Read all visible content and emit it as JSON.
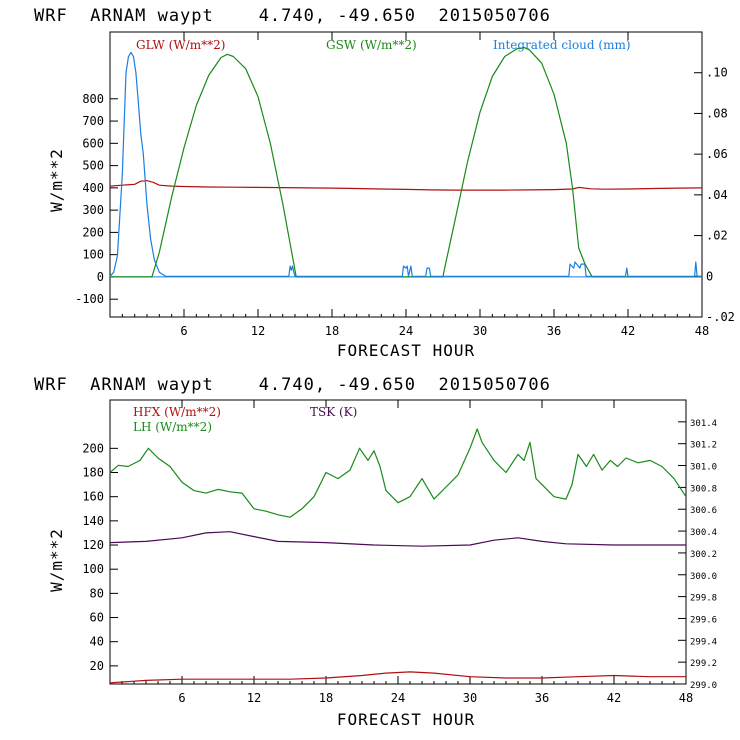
{
  "colors": {
    "red": "#b01010",
    "green": "#1a8a1a",
    "blue": "#1a7fe0",
    "purple": "#4a0a55",
    "axis": "#000000"
  },
  "chart_data": [
    {
      "type": "line",
      "title": "WRF  ARNAM waypt    4.740, -49.650  2015050706",
      "xlabel": "FORECAST HOUR",
      "ylabel": "W/m**2",
      "xlim": [
        0,
        48
      ],
      "ylim": [
        -180,
        1100
      ],
      "x_ticks": [
        6,
        12,
        18,
        24,
        30,
        36,
        42,
        48
      ],
      "y_ticks": [
        -100,
        0,
        100,
        200,
        300,
        400,
        500,
        600,
        700,
        800
      ],
      "y2lim": [
        -0.02,
        0.12
      ],
      "y2_ticks": [
        0.1,
        0.08,
        0.06,
        0.04,
        0.02,
        0,
        -0.02
      ],
      "y2_tick_labels": [
        ".10",
        ".08",
        ".06",
        ".04",
        ".02",
        "0",
        "-.02"
      ],
      "zero_line": true,
      "series": [
        {
          "name": "GLW (W/m**2)",
          "color_key": "red",
          "axis": "left",
          "x": [
            0,
            1,
            2,
            2.5,
            3,
            3.5,
            4,
            5,
            6,
            8,
            10,
            12,
            14,
            16,
            18,
            20,
            22,
            24,
            26,
            28,
            30,
            32,
            34,
            36,
            37.5,
            38,
            39,
            40,
            42,
            44,
            46,
            48
          ],
          "values": [
            408,
            412,
            416,
            430,
            432,
            425,
            412,
            408,
            406,
            404,
            403,
            402,
            401,
            400,
            399,
            397,
            395,
            393,
            391,
            390,
            390,
            390,
            391,
            392,
            395,
            402,
            396,
            394,
            395,
            397,
            399,
            400
          ]
        },
        {
          "name": "GSW (W/m**2)",
          "color_key": "green",
          "axis": "left",
          "x": [
            0,
            3.4,
            4,
            5,
            6,
            7,
            8,
            9,
            9.5,
            10,
            11,
            12,
            13,
            14,
            15,
            15.1,
            27,
            27.1,
            28,
            29,
            30,
            31,
            32,
            33,
            33.6,
            34,
            35,
            36,
            37,
            37.5,
            38,
            38.5,
            39,
            39.1,
            48
          ],
          "values": [
            0,
            0,
            110,
            360,
            580,
            770,
            905,
            985,
            1000,
            990,
            935,
            810,
            600,
            330,
            30,
            0,
            0,
            30,
            260,
            520,
            740,
            900,
            990,
            1025,
            1030,
            1020,
            960,
            820,
            600,
            400,
            130,
            60,
            10,
            0,
            0
          ]
        },
        {
          "name": "Integrated cloud (mm)",
          "color_key": "blue",
          "axis": "right",
          "x": [
            0,
            0.3,
            0.6,
            1.0,
            1.3,
            1.5,
            1.7,
            1.9,
            2.1,
            2.3,
            2.5,
            2.7,
            3.0,
            3.3,
            3.6,
            4.0,
            4.5,
            5.0,
            14.5,
            14.6,
            14.7,
            14.8,
            14.9,
            15.0,
            23.7,
            23.8,
            24.0,
            24.1,
            24.2,
            24.4,
            24.5,
            25.6,
            25.7,
            25.9,
            26.0,
            37.2,
            37.3,
            37.6,
            37.7,
            38.1,
            38.2,
            38.5,
            38.6,
            41.8,
            41.9,
            42.0,
            47.4,
            47.5,
            47.6,
            48
          ],
          "values": [
            0,
            0.002,
            0.01,
            0.05,
            0.1,
            0.108,
            0.11,
            0.108,
            0.1,
            0.085,
            0.07,
            0.06,
            0.035,
            0.018,
            0.008,
            0.002,
            0,
            0,
            0,
            0.005,
            0.003,
            0.005,
            0.002,
            0,
            0,
            0.005,
            0.004,
            0.005,
            0,
            0.005,
            0,
            0,
            0.004,
            0.004,
            0,
            0,
            0.006,
            0.004,
            0.007,
            0.004,
            0.006,
            0.006,
            0,
            0,
            0.004,
            0,
            0,
            0.007,
            0,
            0
          ]
        }
      ]
    },
    {
      "type": "line",
      "title": "WRF  ARNAM waypt    4.740, -49.650  2015050706",
      "xlabel": "FORECAST HOUR",
      "ylabel": "W/m**2",
      "xlim": [
        0,
        48
      ],
      "ylim": [
        5,
        240
      ],
      "x_ticks": [
        6,
        12,
        18,
        24,
        30,
        36,
        42,
        48
      ],
      "y_ticks": [
        20,
        40,
        60,
        80,
        100,
        120,
        140,
        160,
        180,
        200
      ],
      "y2lim": [
        299.0,
        301.6
      ],
      "y2_ticks": [
        301.4,
        301.2,
        301.0,
        300.8,
        300.6,
        300.4,
        300.2,
        300.0,
        299.8,
        299.6,
        299.4,
        299.2,
        299.0
      ],
      "y2_tick_labels": [
        "301.4",
        "301.2",
        "301.0",
        "300.8",
        "300.6",
        "300.4",
        "300.2",
        "300.0",
        "299.8",
        "299.6",
        "299.4",
        "299.2",
        "299.0"
      ],
      "zero_line": false,
      "series": [
        {
          "name": "HFX (W/m**2)",
          "color_key": "red",
          "axis": "left",
          "x": [
            0,
            3,
            6,
            9,
            12,
            15,
            18,
            21,
            23,
            25,
            27,
            30,
            33,
            36,
            39,
            42,
            45,
            48
          ],
          "values": [
            6,
            8,
            9,
            9,
            9,
            9,
            10,
            12,
            14,
            15,
            14,
            11,
            10,
            10,
            11,
            12,
            11,
            11
          ]
        },
        {
          "name": "LH (W/m**2)",
          "color_key": "green",
          "axis": "left",
          "x": [
            0,
            0.7,
            1.5,
            2.5,
            3.2,
            4,
            5,
            6,
            7,
            8,
            9,
            10,
            11,
            12,
            13,
            14,
            15,
            16,
            17,
            18,
            19,
            20,
            20.8,
            21.5,
            22,
            22.5,
            23,
            24,
            25,
            26,
            27,
            28,
            29,
            30,
            30.6,
            31,
            32,
            33,
            34,
            34.5,
            35,
            35.5,
            36,
            37,
            38,
            38.5,
            39,
            39.7,
            40.3,
            41,
            41.7,
            42.3,
            43,
            44,
            45,
            46,
            47,
            48
          ],
          "values": [
            180,
            186,
            185,
            190,
            200,
            192,
            185,
            172,
            165,
            163,
            166,
            164,
            163,
            150,
            148,
            145,
            143,
            150,
            160,
            180,
            175,
            182,
            200,
            190,
            198,
            185,
            165,
            155,
            160,
            175,
            158,
            168,
            178,
            200,
            216,
            205,
            190,
            180,
            195,
            190,
            205,
            175,
            170,
            160,
            158,
            170,
            195,
            185,
            195,
            182,
            190,
            185,
            192,
            188,
            190,
            185,
            175,
            160
          ]
        },
        {
          "name": "TSK (K)",
          "color_key": "purple",
          "axis": "left",
          "x": [
            0,
            3,
            6,
            8,
            10,
            12,
            14,
            18,
            22,
            26,
            30,
            32,
            34,
            36,
            38,
            42,
            48
          ],
          "values": [
            122,
            123,
            126,
            130,
            131,
            127,
            123,
            122,
            120,
            119,
            120,
            124,
            126,
            123,
            121,
            120,
            120
          ]
        }
      ]
    }
  ]
}
